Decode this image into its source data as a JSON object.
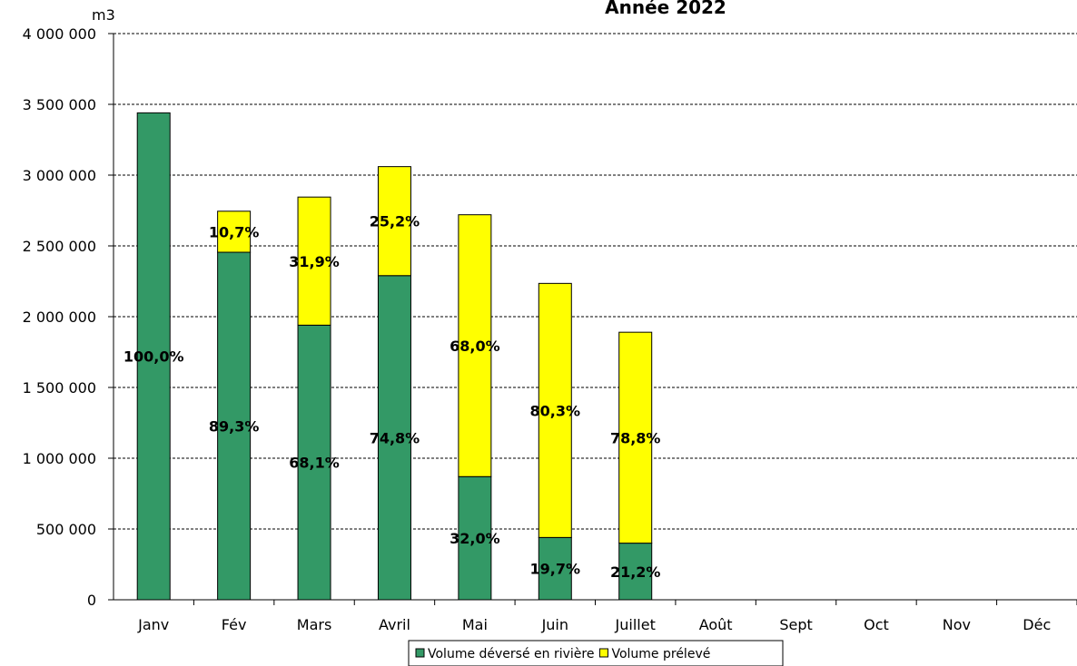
{
  "chart_data": {
    "type": "bar",
    "stacked": true,
    "title": "Année 2022",
    "y_unit": "m3",
    "categories": [
      "Janv",
      "Fév",
      "Mars",
      "Avril",
      "Mai",
      "Juin",
      "Juillet",
      "Août",
      "Sept",
      "Oct",
      "Nov",
      "Déc"
    ],
    "ylim": [
      0,
      4000000
    ],
    "yticks": [
      0,
      500000,
      1000000,
      1500000,
      2000000,
      2500000,
      3000000,
      3500000,
      4000000
    ],
    "ytick_labels": [
      "0",
      "500 000",
      "1 000 000",
      "1 500 000",
      "2 000 000",
      "2 500 000",
      "3 000 000",
      "3 500 000",
      "4 000 000"
    ],
    "grid": "horizontal dashed",
    "legend_position": "bottom",
    "series": [
      {
        "name": "Volume déversé en rivière",
        "color": "#339966",
        "values": [
          3440000,
          2455000,
          1940000,
          2290000,
          870000,
          440000,
          400000,
          null,
          null,
          null,
          null,
          null
        ],
        "labels": [
          "100,0%",
          "89,3%",
          "68,1%",
          "74,8%",
          "32,0%",
          "19,7%",
          "21,2%",
          null,
          null,
          null,
          null,
          null
        ]
      },
      {
        "name": "Volume prélevé",
        "color": "#ffff00",
        "values": [
          0,
          290000,
          905000,
          770000,
          1850000,
          1795000,
          1490000,
          null,
          null,
          null,
          null,
          null
        ],
        "labels": [
          null,
          "10,7%",
          "31,9%",
          "25,2%",
          "68,0%",
          "80,3%",
          "78,8%",
          null,
          null,
          null,
          null,
          null
        ]
      }
    ]
  }
}
